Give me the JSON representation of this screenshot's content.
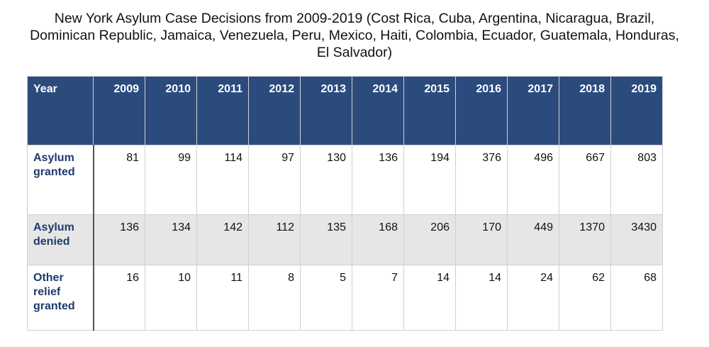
{
  "chart_data": {
    "type": "table",
    "title": "New York Asylum Case Decisions from 2009-2019 (Cost Rica, Cuba, Argentina, Nicaragua, Brazil, Dominican Republic, Jamaica, Venezuela, Peru, Mexico, Haiti, Colombia, Ecuador, Guatemala, Honduras, El Salvador)",
    "row_header_label": "Year",
    "columns": [
      "2009",
      "2010",
      "2011",
      "2012",
      "2013",
      "2014",
      "2015",
      "2016",
      "2017",
      "2018",
      "2019"
    ],
    "rows": [
      {
        "label": "Asylum granted",
        "values": [
          81,
          99,
          114,
          97,
          130,
          136,
          194,
          376,
          496,
          667,
          803
        ]
      },
      {
        "label": "Asylum denied",
        "values": [
          136,
          134,
          142,
          112,
          135,
          168,
          206,
          170,
          449,
          1370,
          3430
        ]
      },
      {
        "label": "Other relief granted",
        "values": [
          16,
          10,
          11,
          8,
          5,
          7,
          14,
          14,
          24,
          62,
          68
        ]
      }
    ],
    "colors": {
      "header_bg": "#2b4b7d",
      "header_text": "#ffffff",
      "row_label_text": "#1f3a6d",
      "stripe_bg": "#e6e6e6"
    }
  }
}
